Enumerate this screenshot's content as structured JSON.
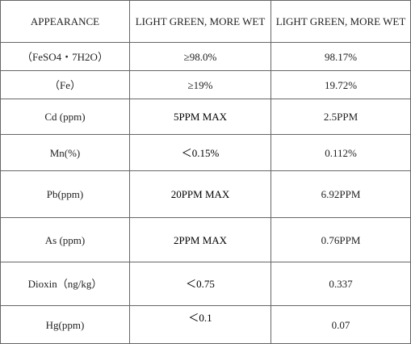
{
  "table": {
    "rows": [
      [
        "APPEARANCE",
        "LIGHT GREEN, MORE WET",
        "LIGHT GREEN, MORE WET"
      ],
      [
        "（FeSO4・7H2O）",
        "≥98.0%",
        "98.17%"
      ],
      [
        "（Fe）",
        "≥19%",
        "19.72%"
      ],
      [
        "Cd (ppm)",
        "5PPM MAX",
        "2.5PPM"
      ],
      [
        "Mn(%)",
        "＜0.15%",
        "0.112%"
      ],
      [
        "Pb(ppm)",
        "20PPM MAX",
        "6.92PPM"
      ],
      [
        "As (ppm)",
        "2PPM MAX",
        "0.76PPM"
      ],
      [
        "Dioxin（ng/kg）",
        "＜0.75",
        "0.337"
      ],
      [
        "Hg(ppm)",
        "＜0.1",
        "0.07"
      ]
    ]
  }
}
